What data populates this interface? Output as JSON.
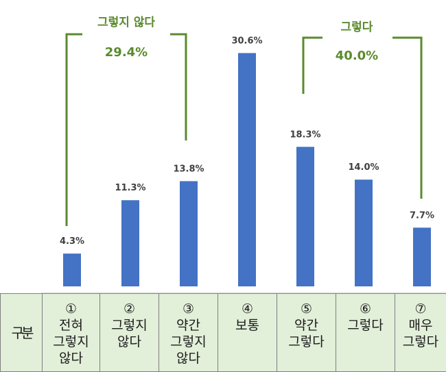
{
  "chart_data": {
    "type": "bar",
    "categories": [
      "①\n전혀\n그렇지\n않다",
      "②\n그렇지\n않다",
      "③\n약간\n그렇지\n않다",
      "④\n보통",
      "⑤\n약간\n그렇다",
      "⑥\n그렇다",
      "⑦\n매우\n그렇다"
    ],
    "values": [
      4.3,
      11.3,
      13.8,
      30.6,
      18.3,
      14.0,
      7.7
    ],
    "value_labels": [
      "4.3%",
      "11.3%",
      "13.8%",
      "30.6%",
      "18.3%",
      "14.0%",
      "7.7%"
    ],
    "bar_color": "#4472c4",
    "ylim": [
      0,
      31
    ],
    "grid": false,
    "legend": "none",
    "groups": [
      {
        "label": "그렇지 않다",
        "value": "29.4%",
        "from": 0,
        "to": 2
      },
      {
        "label": "그렇다",
        "value": "40.0%",
        "from": 4,
        "to": 6
      }
    ],
    "group_color": "#5a8a2e"
  },
  "table": {
    "header": "구분"
  }
}
